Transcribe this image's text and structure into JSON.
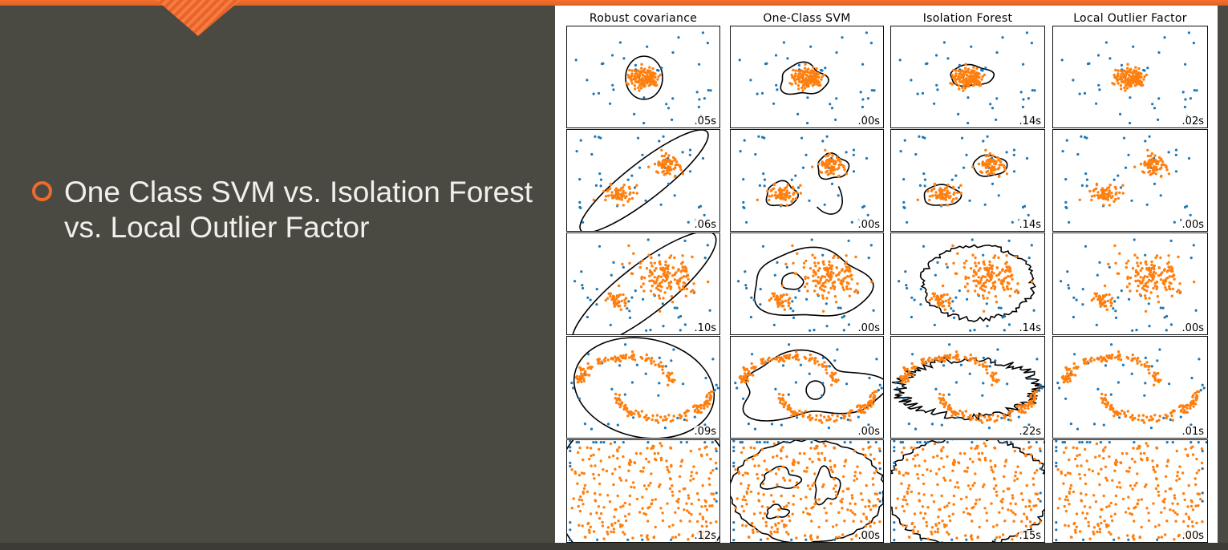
{
  "slide": {
    "bullet_text": "One Class SVM vs. Isolation Forest vs. Local Outlier Factor",
    "accent_color": "#f06a2b",
    "background_color": "#4b4a42",
    "bullet_icon": "ring-bullet-icon"
  },
  "figure": {
    "columns": [
      "Robust covariance",
      "One-Class SVM",
      "Isolation Forest",
      "Local Outlier Factor"
    ],
    "timings": [
      [
        ".05s",
        ".00s",
        ".14s",
        ".02s"
      ],
      [
        ".06s",
        ".00s",
        ".14s",
        ".00s"
      ],
      [
        ".10s",
        ".00s",
        ".14s",
        ".00s"
      ],
      [
        ".09s",
        ".00s",
        ".22s",
        ".01s"
      ],
      [
        ".12s",
        ".00s",
        ".15s",
        ".00s"
      ]
    ],
    "inlier_color": "#ff7f0e",
    "outlier_color": "#1f77b4",
    "boundary_color": "#000000"
  }
}
